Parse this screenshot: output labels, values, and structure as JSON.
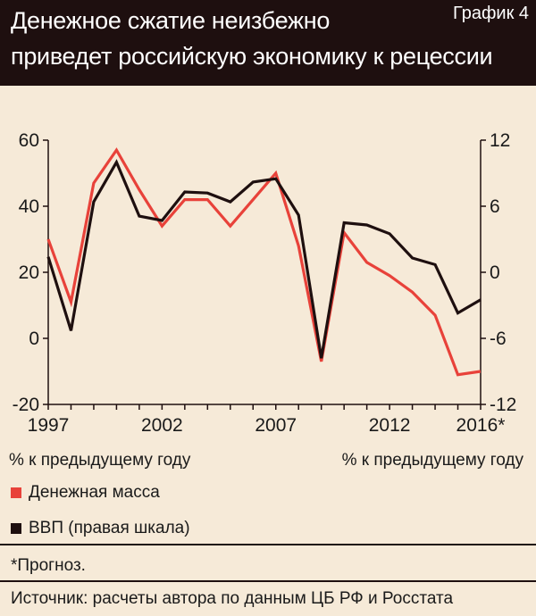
{
  "header": {
    "title_line1": "Денежное сжатие неизбежно",
    "title_line2": "приведет российскую экономику к рецессии",
    "chart_label": "График 4"
  },
  "axis_notes": {
    "left": "% к предыдущему году",
    "right": "% к предыдущему году"
  },
  "legend": [
    {
      "label": "Денежная масса",
      "color": "#e8423a"
    },
    {
      "label": "ВВП (правая шкала)",
      "color": "#1e0f0f"
    }
  ],
  "note": "*Прогноз.",
  "source": "Источник: расчеты автора по данным ЦБ РФ и Росстата",
  "chart_data": {
    "type": "line",
    "title": "Денежное сжатие неизбежно приведет российскую экономику к рецессии",
    "x": [
      1997,
      1998,
      1999,
      2000,
      2001,
      2002,
      2003,
      2004,
      2005,
      2006,
      2007,
      2008,
      2009,
      2010,
      2011,
      2012,
      2013,
      2014,
      2015,
      2016
    ],
    "x_tick_labels": [
      {
        "x": 1997,
        "label": "1997"
      },
      {
        "x": 2002,
        "label": "2002"
      },
      {
        "x": 2007,
        "label": "2007"
      },
      {
        "x": 2012,
        "label": "2012"
      },
      {
        "x": 2016,
        "label": "2016*"
      }
    ],
    "ylabel_left": "% к предыдущему году",
    "ylabel_right": "% к предыдущему году",
    "ylim_left": [
      -20,
      60
    ],
    "ylim_right": [
      -12,
      12
    ],
    "y_ticks_left": [
      -20,
      0,
      20,
      40,
      60
    ],
    "y_ticks_right": [
      -12,
      -6,
      0,
      6,
      12
    ],
    "grid": false,
    "legend_position": "bottom",
    "series": [
      {
        "name": "Денежная масса",
        "axis": "left",
        "color": "#e8423a",
        "values": [
          30,
          11,
          47,
          57,
          45,
          34,
          42,
          42,
          34,
          42,
          50,
          28,
          -7,
          32,
          23,
          19,
          14,
          7,
          -11,
          -10
        ]
      },
      {
        "name": "ВВП (правая шкала)",
        "axis": "right",
        "color": "#1e0f0f",
        "values": [
          1.4,
          -5.3,
          6.4,
          10.0,
          5.1,
          4.7,
          7.3,
          7.2,
          6.4,
          8.2,
          8.5,
          5.2,
          -7.8,
          4.5,
          4.3,
          3.5,
          1.3,
          0.7,
          -3.7,
          -2.5
        ]
      }
    ]
  }
}
